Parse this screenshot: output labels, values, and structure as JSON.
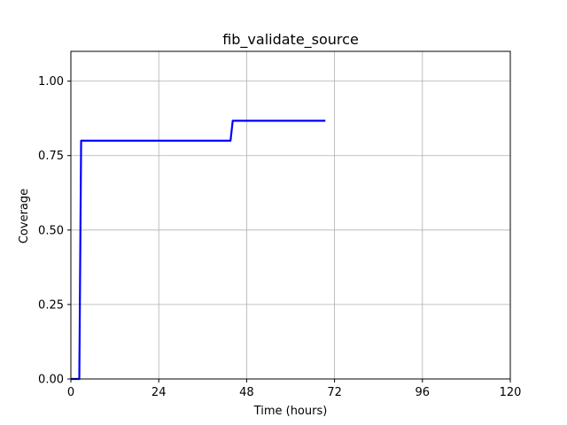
{
  "chart_data": {
    "type": "line",
    "title": "fib_validate_source",
    "xlabel": "Time (hours)",
    "ylabel": "Coverage",
    "xlim": [
      0,
      120
    ],
    "ylim": [
      0,
      1.1
    ],
    "xticks": [
      0,
      24,
      48,
      72,
      96,
      120
    ],
    "xtick_labels": [
      "0",
      "24",
      "48",
      "72",
      "96",
      "120"
    ],
    "yticks": [
      0,
      0.25,
      0.5,
      0.75,
      1.0
    ],
    "ytick_labels": [
      "0.00",
      "0.25",
      "0.50",
      "0.75",
      "1.00"
    ],
    "grid": true,
    "series": [
      {
        "color": "#0000ff",
        "x": [
          0,
          2.3,
          2.8,
          43.6,
          44.2,
          69.5
        ],
        "y": [
          0,
          0,
          0.8,
          0.8,
          0.867,
          0.867
        ]
      }
    ]
  }
}
